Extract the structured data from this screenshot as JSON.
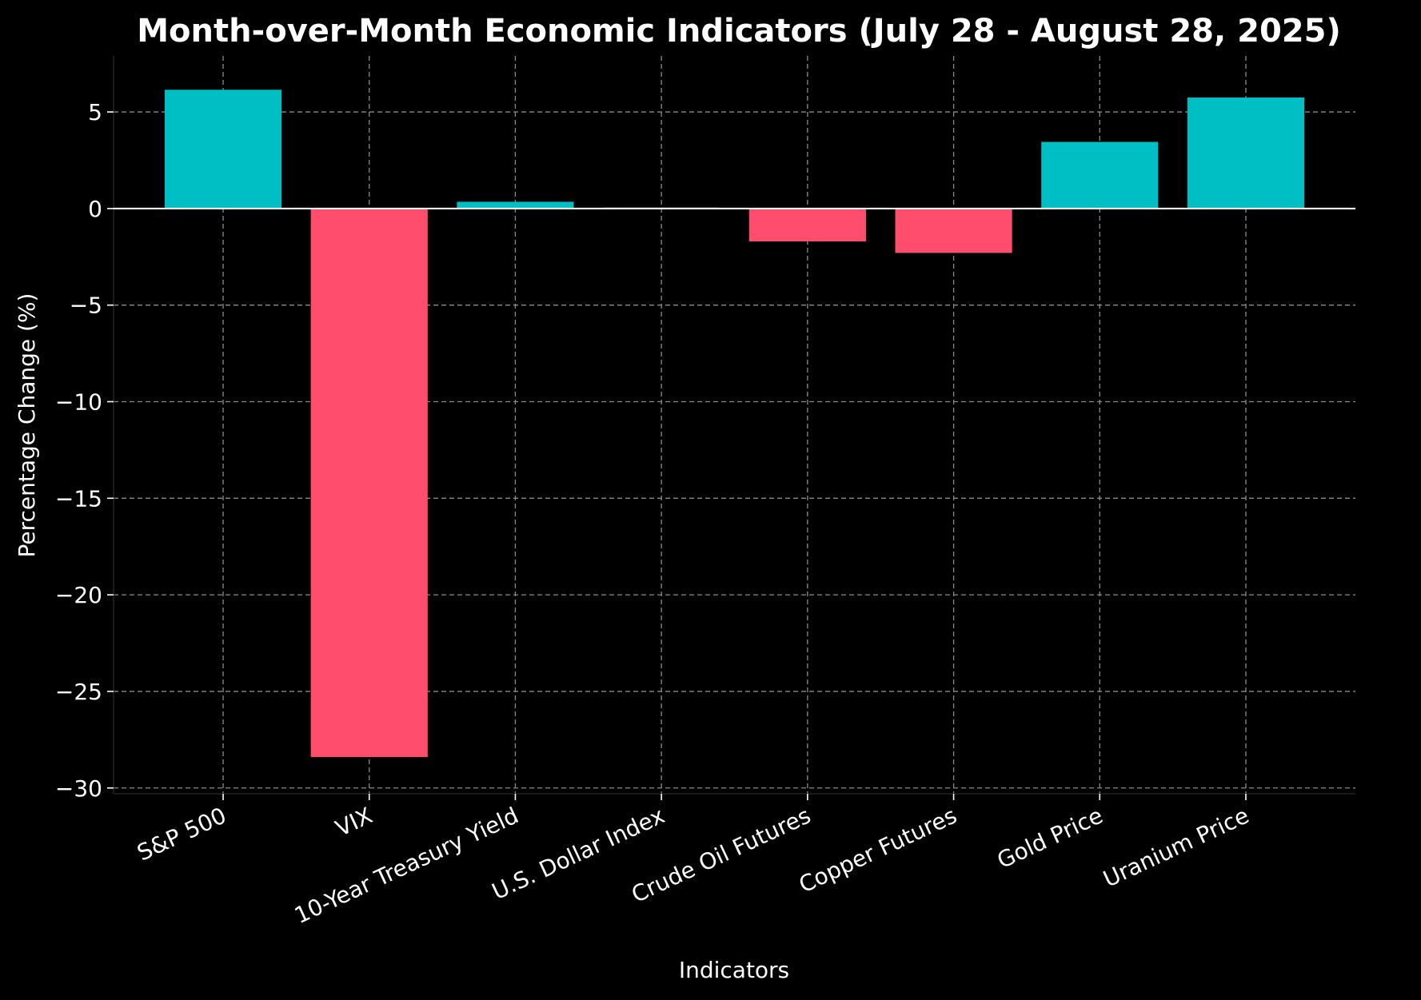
{
  "chart_data": {
    "type": "bar",
    "title": "Month-over-Month Economic Indicators (July 28 - August 28, 2025)",
    "xlabel": "Indicators",
    "ylabel": "Percentage Change (%)",
    "categories": [
      "S&P 500",
      "VIX",
      "10-Year Treasury Yield",
      "U.S. Dollar Index",
      "Crude Oil Futures",
      "Copper Futures",
      "Gold Price",
      "Uranium Price"
    ],
    "values": [
      6.15,
      -28.4,
      0.35,
      0.05,
      -1.7,
      -2.3,
      3.45,
      5.75
    ],
    "ylim": [
      -30.3,
      7.9
    ],
    "yticks": [
      5,
      0,
      -5,
      -10,
      -15,
      -20,
      -25,
      -30
    ],
    "ytick_labels": [
      "5",
      "0",
      "−5",
      "−10",
      "−15",
      "−20",
      "−25",
      "−30"
    ],
    "grid": true,
    "colors": {
      "positive": "#00BFC4",
      "negative": "#FF4D6D",
      "background": "#000000",
      "text": "#FFFFFF",
      "grid": "#8A8A8A"
    }
  }
}
